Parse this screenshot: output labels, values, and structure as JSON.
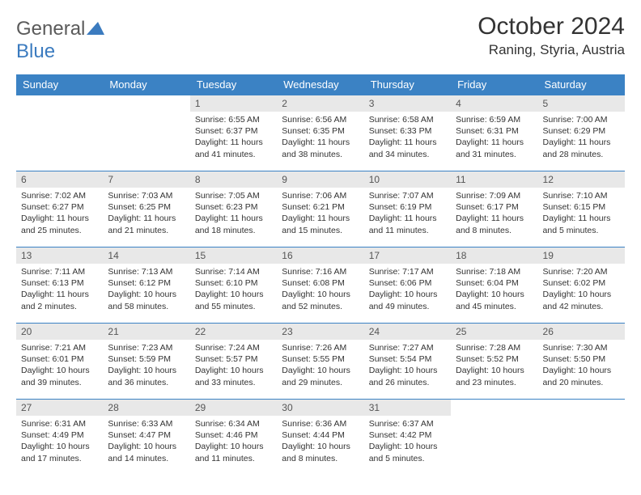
{
  "logo": {
    "text1": "General",
    "text2": "Blue"
  },
  "title": "October 2024",
  "location": "Raning, Styria, Austria",
  "colors": {
    "header_bg": "#3b82c4",
    "header_fg": "#ffffff",
    "daynum_bg": "#e8e8e8",
    "daynum_fg": "#555555",
    "border": "#3b82c4",
    "text": "#333333",
    "logo_gray": "#5a5a5a",
    "logo_blue": "#3b7bbf"
  },
  "typography": {
    "title_fontsize": 30,
    "location_fontsize": 17,
    "weekday_fontsize": 13,
    "daynum_fontsize": 12,
    "body_fontsize": 10.5
  },
  "weekdays": [
    "Sunday",
    "Monday",
    "Tuesday",
    "Wednesday",
    "Thursday",
    "Friday",
    "Saturday"
  ],
  "weeks": [
    [
      null,
      null,
      {
        "n": "1",
        "sr": "Sunrise: 6:55 AM",
        "ss": "Sunset: 6:37 PM",
        "d1": "Daylight: 11 hours",
        "d2": "and 41 minutes."
      },
      {
        "n": "2",
        "sr": "Sunrise: 6:56 AM",
        "ss": "Sunset: 6:35 PM",
        "d1": "Daylight: 11 hours",
        "d2": "and 38 minutes."
      },
      {
        "n": "3",
        "sr": "Sunrise: 6:58 AM",
        "ss": "Sunset: 6:33 PM",
        "d1": "Daylight: 11 hours",
        "d2": "and 34 minutes."
      },
      {
        "n": "4",
        "sr": "Sunrise: 6:59 AM",
        "ss": "Sunset: 6:31 PM",
        "d1": "Daylight: 11 hours",
        "d2": "and 31 minutes."
      },
      {
        "n": "5",
        "sr": "Sunrise: 7:00 AM",
        "ss": "Sunset: 6:29 PM",
        "d1": "Daylight: 11 hours",
        "d2": "and 28 minutes."
      }
    ],
    [
      {
        "n": "6",
        "sr": "Sunrise: 7:02 AM",
        "ss": "Sunset: 6:27 PM",
        "d1": "Daylight: 11 hours",
        "d2": "and 25 minutes."
      },
      {
        "n": "7",
        "sr": "Sunrise: 7:03 AM",
        "ss": "Sunset: 6:25 PM",
        "d1": "Daylight: 11 hours",
        "d2": "and 21 minutes."
      },
      {
        "n": "8",
        "sr": "Sunrise: 7:05 AM",
        "ss": "Sunset: 6:23 PM",
        "d1": "Daylight: 11 hours",
        "d2": "and 18 minutes."
      },
      {
        "n": "9",
        "sr": "Sunrise: 7:06 AM",
        "ss": "Sunset: 6:21 PM",
        "d1": "Daylight: 11 hours",
        "d2": "and 15 minutes."
      },
      {
        "n": "10",
        "sr": "Sunrise: 7:07 AM",
        "ss": "Sunset: 6:19 PM",
        "d1": "Daylight: 11 hours",
        "d2": "and 11 minutes."
      },
      {
        "n": "11",
        "sr": "Sunrise: 7:09 AM",
        "ss": "Sunset: 6:17 PM",
        "d1": "Daylight: 11 hours",
        "d2": "and 8 minutes."
      },
      {
        "n": "12",
        "sr": "Sunrise: 7:10 AM",
        "ss": "Sunset: 6:15 PM",
        "d1": "Daylight: 11 hours",
        "d2": "and 5 minutes."
      }
    ],
    [
      {
        "n": "13",
        "sr": "Sunrise: 7:11 AM",
        "ss": "Sunset: 6:13 PM",
        "d1": "Daylight: 11 hours",
        "d2": "and 2 minutes."
      },
      {
        "n": "14",
        "sr": "Sunrise: 7:13 AM",
        "ss": "Sunset: 6:12 PM",
        "d1": "Daylight: 10 hours",
        "d2": "and 58 minutes."
      },
      {
        "n": "15",
        "sr": "Sunrise: 7:14 AM",
        "ss": "Sunset: 6:10 PM",
        "d1": "Daylight: 10 hours",
        "d2": "and 55 minutes."
      },
      {
        "n": "16",
        "sr": "Sunrise: 7:16 AM",
        "ss": "Sunset: 6:08 PM",
        "d1": "Daylight: 10 hours",
        "d2": "and 52 minutes."
      },
      {
        "n": "17",
        "sr": "Sunrise: 7:17 AM",
        "ss": "Sunset: 6:06 PM",
        "d1": "Daylight: 10 hours",
        "d2": "and 49 minutes."
      },
      {
        "n": "18",
        "sr": "Sunrise: 7:18 AM",
        "ss": "Sunset: 6:04 PM",
        "d1": "Daylight: 10 hours",
        "d2": "and 45 minutes."
      },
      {
        "n": "19",
        "sr": "Sunrise: 7:20 AM",
        "ss": "Sunset: 6:02 PM",
        "d1": "Daylight: 10 hours",
        "d2": "and 42 minutes."
      }
    ],
    [
      {
        "n": "20",
        "sr": "Sunrise: 7:21 AM",
        "ss": "Sunset: 6:01 PM",
        "d1": "Daylight: 10 hours",
        "d2": "and 39 minutes."
      },
      {
        "n": "21",
        "sr": "Sunrise: 7:23 AM",
        "ss": "Sunset: 5:59 PM",
        "d1": "Daylight: 10 hours",
        "d2": "and 36 minutes."
      },
      {
        "n": "22",
        "sr": "Sunrise: 7:24 AM",
        "ss": "Sunset: 5:57 PM",
        "d1": "Daylight: 10 hours",
        "d2": "and 33 minutes."
      },
      {
        "n": "23",
        "sr": "Sunrise: 7:26 AM",
        "ss": "Sunset: 5:55 PM",
        "d1": "Daylight: 10 hours",
        "d2": "and 29 minutes."
      },
      {
        "n": "24",
        "sr": "Sunrise: 7:27 AM",
        "ss": "Sunset: 5:54 PM",
        "d1": "Daylight: 10 hours",
        "d2": "and 26 minutes."
      },
      {
        "n": "25",
        "sr": "Sunrise: 7:28 AM",
        "ss": "Sunset: 5:52 PM",
        "d1": "Daylight: 10 hours",
        "d2": "and 23 minutes."
      },
      {
        "n": "26",
        "sr": "Sunrise: 7:30 AM",
        "ss": "Sunset: 5:50 PM",
        "d1": "Daylight: 10 hours",
        "d2": "and 20 minutes."
      }
    ],
    [
      {
        "n": "27",
        "sr": "Sunrise: 6:31 AM",
        "ss": "Sunset: 4:49 PM",
        "d1": "Daylight: 10 hours",
        "d2": "and 17 minutes."
      },
      {
        "n": "28",
        "sr": "Sunrise: 6:33 AM",
        "ss": "Sunset: 4:47 PM",
        "d1": "Daylight: 10 hours",
        "d2": "and 14 minutes."
      },
      {
        "n": "29",
        "sr": "Sunrise: 6:34 AM",
        "ss": "Sunset: 4:46 PM",
        "d1": "Daylight: 10 hours",
        "d2": "and 11 minutes."
      },
      {
        "n": "30",
        "sr": "Sunrise: 6:36 AM",
        "ss": "Sunset: 4:44 PM",
        "d1": "Daylight: 10 hours",
        "d2": "and 8 minutes."
      },
      {
        "n": "31",
        "sr": "Sunrise: 6:37 AM",
        "ss": "Sunset: 4:42 PM",
        "d1": "Daylight: 10 hours",
        "d2": "and 5 minutes."
      },
      null,
      null
    ]
  ]
}
